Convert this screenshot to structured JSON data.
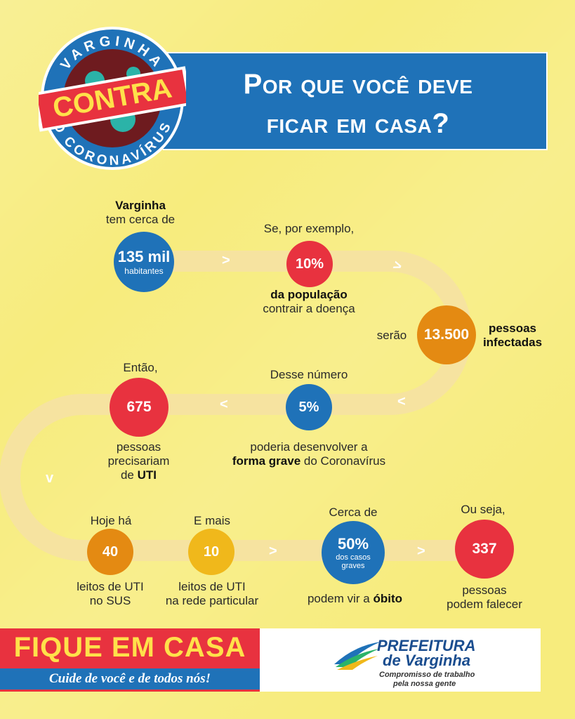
{
  "header": {
    "title_line1": "Por que você deve",
    "title_line2": "ficar em casa?",
    "logo_top": "VARGINHA",
    "logo_mid": "CONTRA",
    "logo_bottom": "O CORONAVÍRUS"
  },
  "steps": {
    "s1": {
      "above_bold": "Varginha",
      "above": "tem cerca de",
      "value": "135 mil",
      "sub": "habitantes"
    },
    "s2": {
      "above": "Se, por exemplo,",
      "value": "10%",
      "below_bold": "da população",
      "below": "contrair a doença"
    },
    "s3": {
      "left": "serão",
      "value": "13.500",
      "right_line1": "pessoas",
      "right_line2": "infectadas"
    },
    "s4": {
      "above": "Desse número",
      "value": "5%",
      "below1": "poderia desenvolver a",
      "below_bold": "forma grave",
      "below2": "do Coronavírus"
    },
    "s5": {
      "above": "Então,",
      "value": "675",
      "below1": "pessoas",
      "below2": "precisariam",
      "below3_pre": "de",
      "below3_bold": "UTI"
    },
    "s6": {
      "above": "Hoje há",
      "value": "40",
      "below1": "leitos de UTI",
      "below2": "no SUS"
    },
    "s7": {
      "above": "E mais",
      "value": "10",
      "below1": "leitos de UTI",
      "below2": "na rede particular"
    },
    "s8": {
      "above": "Cerca de",
      "value": "50%",
      "sub1": "dos casos",
      "sub2": "graves",
      "below_pre": "podem vir a",
      "below_bold": "óbito"
    },
    "s9": {
      "above": "Ou seja,",
      "value": "337",
      "below1": "pessoas",
      "below2": "podem falecer"
    }
  },
  "arrows": {
    "right": ">",
    "left": "<",
    "down": "v"
  },
  "footer": {
    "fique": "FIQUE EM CASA",
    "cuide": "Cuide de você e de todos nós!",
    "pref_title": "PREFEITURA",
    "pref_sub": "de Varginha",
    "pref_line1": "Compromisso de trabalho",
    "pref_line2": "pela nossa gente"
  },
  "colors": {
    "background": "#f7ec7d",
    "blue": "#1f72b8",
    "red": "#e8323f",
    "orange": "#e48a12",
    "yellow": "#f0b81b",
    "path": "#f5e29a"
  }
}
